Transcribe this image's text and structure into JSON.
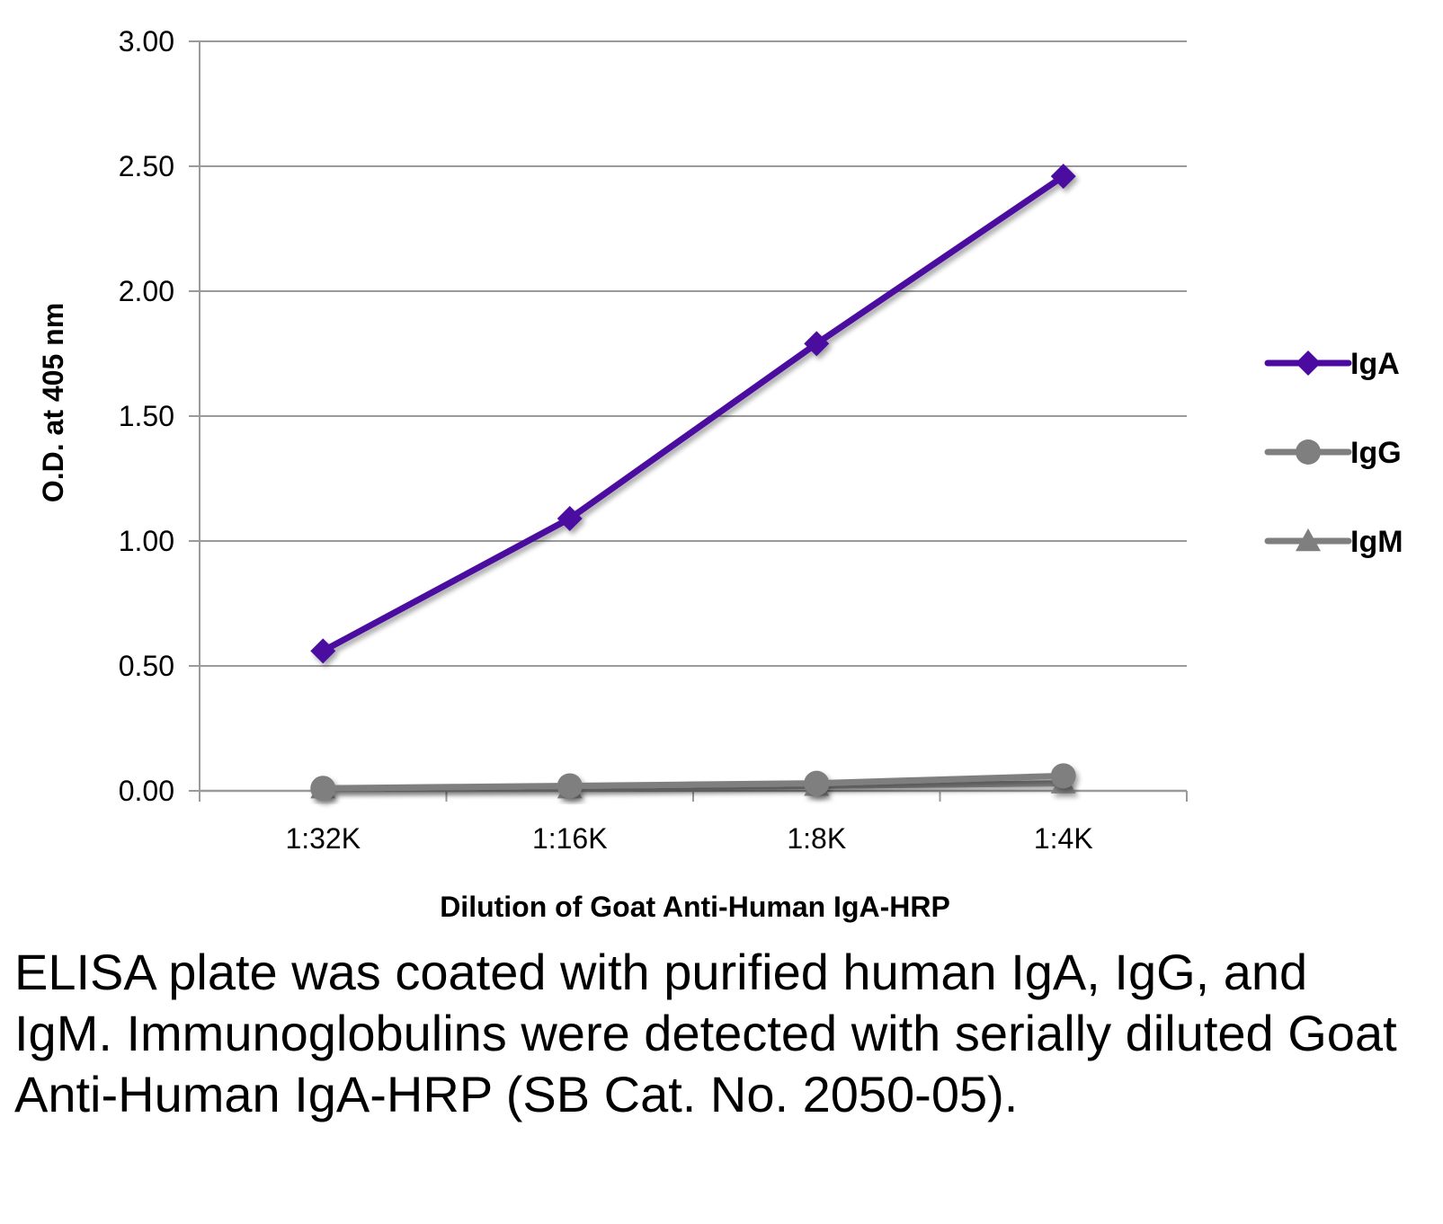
{
  "chart_data": {
    "type": "line",
    "categories": [
      "1:32K",
      "1:16K",
      "1:8K",
      "1:4K"
    ],
    "series": [
      {
        "name": "IgA",
        "color": "#4B0AA0",
        "marker": "diamond",
        "values": [
          0.56,
          1.09,
          1.79,
          2.46
        ]
      },
      {
        "name": "IgG",
        "color": "#7F7F7F",
        "marker": "circle",
        "values": [
          0.01,
          0.02,
          0.03,
          0.06
        ]
      },
      {
        "name": "IgM",
        "color": "#7F7F7F",
        "marker": "triangle",
        "values": [
          0.01,
          0.01,
          0.02,
          0.03
        ]
      }
    ],
    "xlabel": "Dilution of Goat Anti-Human IgA-HRP",
    "ylabel": "O.D. at 405 nm",
    "ylim": [
      0,
      3
    ],
    "yticks": [
      "0.00",
      "0.50",
      "1.00",
      "1.50",
      "2.00",
      "2.50",
      "3.00"
    ],
    "grid": true,
    "legend_position": "right"
  },
  "caption": "ELISA plate was coated with purified human IgA, IgG, and IgM.  Immunoglobulins were detected with serially diluted Goat Anti-Human IgA-HRP (SB Cat. No. 2050-05)."
}
